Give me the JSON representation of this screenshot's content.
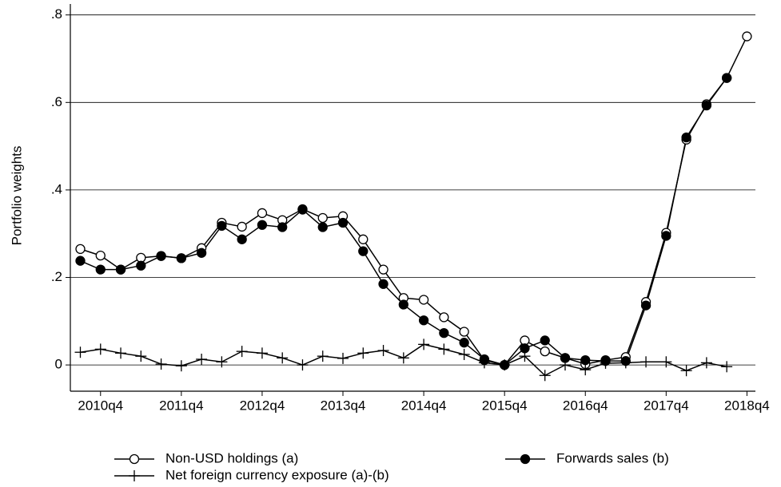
{
  "chart_data": {
    "type": "line",
    "y_label": "Portfolio weights",
    "categories": [
      null,
      "2010q4",
      null,
      null,
      null,
      "2011q4",
      null,
      null,
      null,
      "2012q4",
      null,
      null,
      null,
      "2013q4",
      null,
      null,
      null,
      "2014q4",
      null,
      null,
      null,
      "2015q4",
      null,
      null,
      null,
      "2016q4",
      null,
      null,
      null,
      "2017q4",
      null,
      null,
      null,
      "2018q4"
    ],
    "series": [
      {
        "name": "Non-USD holdings (a)",
        "color": "#000000",
        "marker": "open-circle",
        "values": [
          0.265,
          0.25,
          0.218,
          0.245,
          0.249,
          0.244,
          0.267,
          0.325,
          0.316,
          0.347,
          0.331,
          0.356,
          0.336,
          0.34,
          0.287,
          0.218,
          0.153,
          0.149,
          0.109,
          0.076,
          0.011,
          0,
          0.056,
          0.031,
          0.016,
          0.002,
          0.011,
          0.018,
          0.144,
          0.302,
          0.515,
          0.596,
          0.656,
          0.751
        ]
      },
      {
        "name": "Forwards sales (b)",
        "color": "#000000",
        "marker": "filled-circle",
        "values": [
          0.238,
          0.218,
          0.218,
          0.227,
          0.249,
          0.244,
          0.256,
          0.318,
          0.287,
          0.32,
          0.315,
          0.355,
          0.315,
          0.325,
          0.26,
          0.185,
          0.138,
          0.102,
          0.073,
          0.051,
          0.013,
          0,
          0.038,
          0.056,
          0.016,
          0.011,
          0.009,
          0.009,
          0.136,
          0.295,
          0.52,
          0.593,
          0.656,
          null
        ]
      },
      {
        "name": "Net foreign currency exposure (a)-(b)",
        "color": "#000000",
        "marker": "plus",
        "values": [
          0.029,
          0.036,
          0.027,
          0.02,
          0.002,
          -0.002,
          0.013,
          0.007,
          0.031,
          0.027,
          0.016,
          0,
          0.02,
          0.015,
          0.027,
          0.033,
          0.016,
          0.047,
          0.036,
          0.024,
          0.005,
          0,
          0.02,
          -0.024,
          0,
          -0.011,
          0.004,
          0.005,
          0.007,
          0.007,
          -0.013,
          0.005,
          -0.004,
          null
        ]
      }
    ],
    "ylim": [
      -0.06,
      0.825
    ],
    "yticks": [
      0,
      {
        "value": 0.2,
        "label": ".2"
      },
      {
        "value": 0.4,
        "label": ".4"
      },
      {
        "value": 0.6,
        "label": ".6"
      },
      {
        "value": 0.8,
        "label": ".8"
      }
    ],
    "grid": true,
    "legend": "bottom"
  }
}
